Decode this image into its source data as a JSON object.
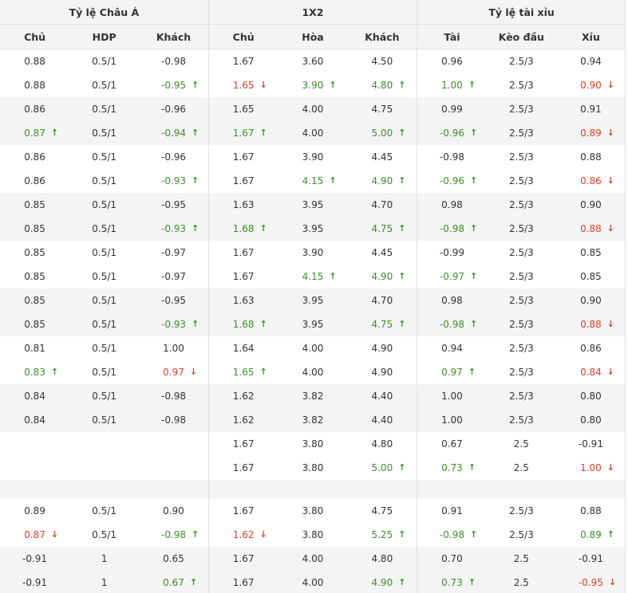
{
  "groups": [
    "Tỷ lệ Châu Á",
    "1X2",
    "Tỷ lệ tài xỉu"
  ],
  "columns": [
    "Chủ",
    "HDP",
    "Khách",
    "Chủ",
    "Hòa",
    "Khách",
    "Tài",
    "Kèo đầu",
    "Xỉu"
  ],
  "colors": {
    "up": "#3e8e2a",
    "down": "#d9412a"
  },
  "rows": [
    {
      "shade": "white",
      "cells": [
        "0.88",
        "0.5/1",
        "-0.98",
        "1.67",
        "3.60",
        "4.50",
        "0.96",
        "2.5/3",
        "0.94"
      ]
    },
    {
      "shade": "white",
      "cells": [
        "0.88",
        "0.5/1",
        "-0.95|up",
        "1.65|down",
        "3.90|up",
        "4.80|up",
        "1.00|up",
        "2.5/3",
        "0.90|down"
      ]
    },
    {
      "shade": "gray",
      "cells": [
        "0.86",
        "0.5/1",
        "-0.96",
        "1.65",
        "4.00",
        "4.75",
        "0.99",
        "2.5/3",
        "0.91"
      ]
    },
    {
      "shade": "gray",
      "cells": [
        "0.87|up",
        "0.5/1",
        "-0.94|up",
        "1.67|up",
        "4.00",
        "5.00|up",
        "-0.96|up",
        "2.5/3",
        "0.89|down"
      ]
    },
    {
      "shade": "white",
      "cells": [
        "0.86",
        "0.5/1",
        "-0.96",
        "1.67",
        "3.90",
        "4.45",
        "-0.98",
        "2.5/3",
        "0.88"
      ]
    },
    {
      "shade": "white",
      "cells": [
        "0.86",
        "0.5/1",
        "-0.93|up",
        "1.67",
        "4.15|up",
        "4.90|up",
        "-0.96|up",
        "2.5/3",
        "0.86|down"
      ]
    },
    {
      "shade": "gray",
      "cells": [
        "0.85",
        "0.5/1",
        "-0.95",
        "1.63",
        "3.95",
        "4.70",
        "0.98",
        "2.5/3",
        "0.90"
      ]
    },
    {
      "shade": "gray",
      "cells": [
        "0.85",
        "0.5/1",
        "-0.93|up",
        "1.68|up",
        "3.95",
        "4.75|up",
        "-0.98|up",
        "2.5/3",
        "0.88|down"
      ]
    },
    {
      "shade": "white",
      "cells": [
        "0.85",
        "0.5/1",
        "-0.97",
        "1.67",
        "3.90",
        "4.45",
        "-0.99",
        "2.5/3",
        "0.85"
      ]
    },
    {
      "shade": "white",
      "cells": [
        "0.85",
        "0.5/1",
        "-0.97",
        "1.67",
        "4.15|up",
        "4.90|up",
        "-0.97|up",
        "2.5/3",
        "0.85"
      ]
    },
    {
      "shade": "gray",
      "cells": [
        "0.85",
        "0.5/1",
        "-0.95",
        "1.63",
        "3.95",
        "4.70",
        "0.98",
        "2.5/3",
        "0.90"
      ]
    },
    {
      "shade": "gray",
      "cells": [
        "0.85",
        "0.5/1",
        "-0.93|up",
        "1.68|up",
        "3.95",
        "4.75|up",
        "-0.98|up",
        "2.5/3",
        "0.88|down"
      ]
    },
    {
      "shade": "white",
      "cells": [
        "0.81",
        "0.5/1",
        "1.00",
        "1.64",
        "4.00",
        "4.90",
        "0.94",
        "2.5/3",
        "0.86"
      ]
    },
    {
      "shade": "white",
      "cells": [
        "0.83|up",
        "0.5/1",
        "0.97|down",
        "1.65|up",
        "4.00",
        "4.90",
        "0.97|up",
        "2.5/3",
        "0.84|down"
      ]
    },
    {
      "shade": "gray",
      "cells": [
        "0.84",
        "0.5/1",
        "-0.98",
        "1.62",
        "3.82",
        "4.40",
        "1.00",
        "2.5/3",
        "0.80"
      ]
    },
    {
      "shade": "gray",
      "cells": [
        "0.84",
        "0.5/1",
        "-0.98",
        "1.62",
        "3.82",
        "4.40",
        "1.00",
        "2.5/3",
        "0.80"
      ]
    },
    {
      "shade": "white",
      "cells": [
        "",
        "",
        "",
        "1.67",
        "3.80",
        "4.80",
        "0.67",
        "2.5",
        "-0.91"
      ]
    },
    {
      "shade": "white",
      "cells": [
        "",
        "",
        "",
        "1.67",
        "3.80",
        "5.00|up",
        "0.73|up",
        "2.5",
        "1.00|down"
      ]
    },
    {
      "shade": "blank",
      "cells": [
        "",
        "",
        "",
        "",
        "",
        "",
        "",
        "",
        ""
      ]
    },
    {
      "shade": "white",
      "cells": [
        "0.89",
        "0.5/1",
        "0.90",
        "1.67",
        "3.80",
        "4.75",
        "0.91",
        "2.5/3",
        "0.88"
      ]
    },
    {
      "shade": "white",
      "cells": [
        "0.87|down",
        "0.5/1",
        "-0.98|up",
        "1.62|down",
        "3.80",
        "5.25|up",
        "-0.98|up",
        "2.5/3",
        "0.89|up"
      ]
    },
    {
      "shade": "gray",
      "cells": [
        "-0.91",
        "1",
        "0.65",
        "1.67",
        "4.00",
        "4.80",
        "0.70",
        "2.5",
        "-0.91"
      ]
    },
    {
      "shade": "gray",
      "cells": [
        "-0.91",
        "1",
        "0.67|up",
        "1.67",
        "4.00",
        "4.90|up",
        "0.73|up",
        "2.5",
        "-0.95|down"
      ]
    }
  ]
}
